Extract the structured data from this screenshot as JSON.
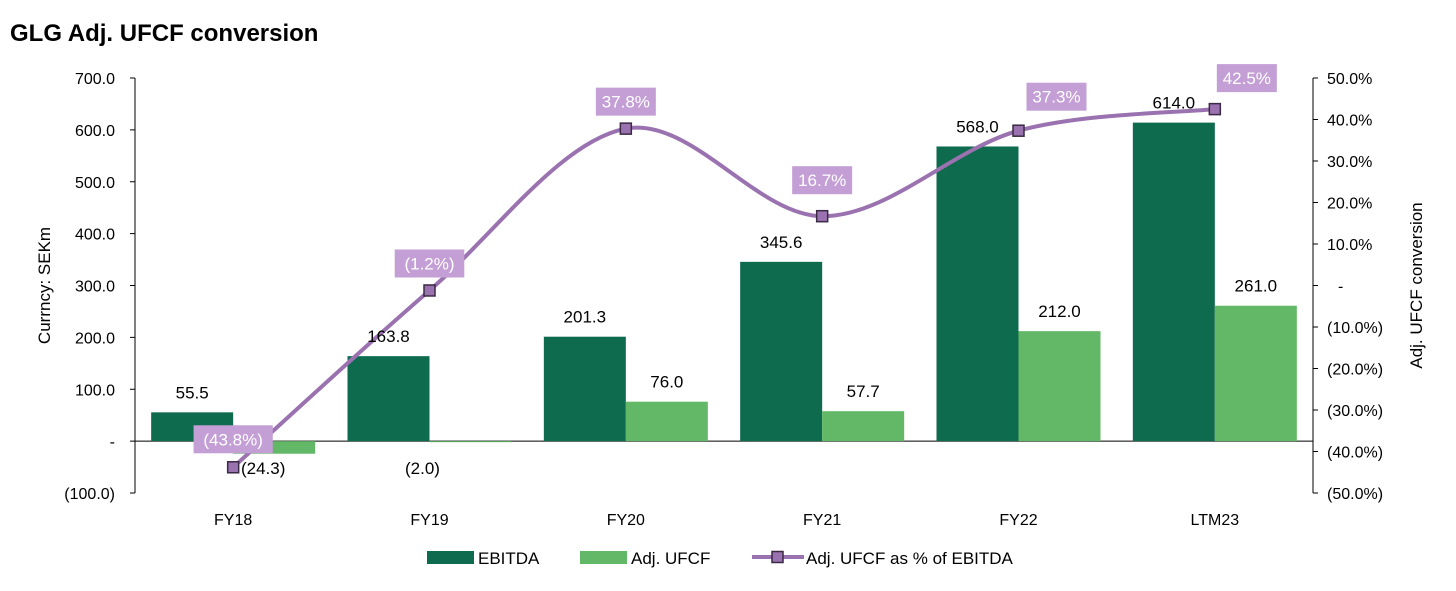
{
  "chart_data": {
    "type": "bar",
    "title": "GLG Adj. UFCF conversion",
    "categories": [
      "FY18",
      "FY19",
      "FY20",
      "FY21",
      "FY22",
      "LTM23"
    ],
    "ylabel": "Currncy: SEKm",
    "y2label": "Adj. UFCF conversion",
    "ylim": [
      -100,
      700
    ],
    "y2lim": [
      -50,
      50
    ],
    "y_ticks": [
      "700.0",
      "600.0",
      "500.0",
      "400.0",
      "300.0",
      "200.0",
      "100.0",
      "-",
      "(100.0)"
    ],
    "y2_ticks": [
      "50.0%",
      "40.0%",
      "30.0%",
      "20.0%",
      "10.0%",
      "-",
      "(10.0%)",
      "(20.0%)",
      "(30.0%)",
      "(40.0%)",
      "(50.0%)"
    ],
    "series": [
      {
        "name": "EBITDA",
        "kind": "bar",
        "color": "#0e6b4e",
        "values": [
          55.5,
          163.8,
          201.3,
          345.6,
          568.0,
          614.0
        ],
        "labels": [
          "55.5",
          "163.8",
          "201.3",
          "345.6",
          "568.0",
          "614.0"
        ]
      },
      {
        "name": "Adj. UFCF",
        "kind": "bar",
        "color": "#62b866",
        "values": [
          -24.3,
          -2.0,
          76.0,
          57.7,
          212.0,
          261.0
        ],
        "labels": [
          "(24.3)",
          "(2.0)",
          "76.0",
          "57.7",
          "212.0",
          "261.0"
        ]
      },
      {
        "name": "Adj. UFCF as % of EBITDA",
        "kind": "line",
        "axis": "right",
        "color": "#9b72b0",
        "values": [
          -43.8,
          -1.2,
          37.8,
          16.7,
          37.3,
          42.5
        ],
        "labels": [
          "(43.8%)",
          "(1.2%)",
          "37.8%",
          "16.7%",
          "37.3%",
          "42.5%"
        ]
      }
    ],
    "legend": [
      "EBITDA",
      "Adj. UFCF",
      "Adj. UFCF as % of EBITDA"
    ],
    "legend_position": "bottom"
  }
}
